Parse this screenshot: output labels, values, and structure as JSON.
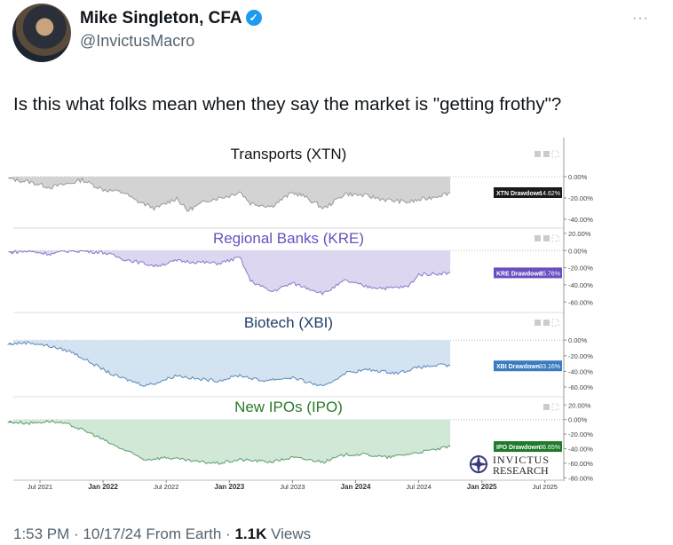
{
  "tweet": {
    "name": "Mike Singleton, CFA",
    "handle": "@InvictusMacro",
    "text": "Is this what folks mean when they say the market is \"getting frothy\"?",
    "time": "1:53 PM · 10/17/24 From Earth · ",
    "views_count": "1.1K",
    "views_label": " Views",
    "more": "···"
  },
  "chart_data": [
    {
      "type": "area",
      "title": "Transports (XTN)",
      "title_color": "#111111",
      "color": "#9a9a9a",
      "fill": "#d3d3d3",
      "label": "XTN Drawdown",
      "value": "-14.62%",
      "label_bg": "#1a1a1a",
      "ticks": [
        "0.00%",
        "-20.00%",
        "-40.00%"
      ],
      "tick_values": [
        0,
        -20,
        -40
      ],
      "ylim": [
        -45,
        10
      ],
      "x": [
        "2021-04",
        "2021-06",
        "2021-08",
        "2021-10",
        "2021-11",
        "2022-01",
        "2022-03",
        "2022-04",
        "2022-06",
        "2022-08",
        "2022-09",
        "2022-11",
        "2023-01",
        "2023-02",
        "2023-03",
        "2023-05",
        "2023-07",
        "2023-08",
        "2023-10",
        "2023-12",
        "2024-02",
        "2024-04",
        "2024-06",
        "2024-08",
        "2024-10"
      ],
      "y": [
        -2,
        -5,
        -10,
        -6,
        -3,
        -12,
        -15,
        -22,
        -30,
        -20,
        -32,
        -22,
        -18,
        -14,
        -25,
        -28,
        -15,
        -18,
        -30,
        -16,
        -18,
        -22,
        -24,
        -20,
        -15
      ]
    },
    {
      "type": "area",
      "title": "Regional Banks (KRE)",
      "title_color": "#6a4fc0",
      "color": "#8a78c8",
      "fill": "#ddd6f0",
      "label": "KRE Drawdown",
      "value": "-25.76%",
      "label_bg": "#6a4fc0",
      "ticks": [
        "20.00%",
        "0.00%",
        "-20.00%",
        "-40.00%",
        "-60.00%"
      ],
      "tick_values": [
        20,
        0,
        -20,
        -40,
        -60
      ],
      "ylim": [
        -68,
        22
      ],
      "x": [
        "2021-04",
        "2021-06",
        "2021-08",
        "2021-10",
        "2022-01",
        "2022-03",
        "2022-06",
        "2022-08",
        "2022-12",
        "2023-02",
        "2023-03",
        "2023-05",
        "2023-07",
        "2023-10",
        "2023-12",
        "2024-02",
        "2024-04",
        "2024-06",
        "2024-07",
        "2024-10"
      ],
      "y": [
        -2,
        -1,
        -4,
        0,
        -2,
        -10,
        -18,
        -12,
        -15,
        -8,
        -35,
        -48,
        -38,
        -50,
        -35,
        -42,
        -44,
        -42,
        -28,
        -26
      ]
    },
    {
      "type": "area",
      "title": "Biotech (XBI)",
      "title_color": "#1f3f6a",
      "color": "#5a88b8",
      "fill": "#d4e3f2",
      "label": "XBI Drawdown",
      "value": "-33.16%",
      "label_bg": "#3a7cc0",
      "ticks": [
        "0.00%",
        "-20.00%",
        "-40.00%",
        "-60.00%"
      ],
      "tick_values": [
        0,
        -20,
        -40,
        -60
      ],
      "ylim": [
        -68,
        15
      ],
      "x": [
        "2021-04",
        "2021-06",
        "2021-08",
        "2021-10",
        "2021-12",
        "2022-02",
        "2022-05",
        "2022-06",
        "2022-08",
        "2022-10",
        "2022-12",
        "2023-02",
        "2023-04",
        "2023-07",
        "2023-10",
        "2023-12",
        "2024-02",
        "2024-05",
        "2024-07",
        "2024-09",
        "2024-10"
      ],
      "y": [
        -5,
        -3,
        -8,
        -15,
        -30,
        -45,
        -58,
        -55,
        -45,
        -50,
        -52,
        -45,
        -52,
        -48,
        -60,
        -42,
        -38,
        -42,
        -35,
        -32,
        -33
      ]
    },
    {
      "type": "area",
      "title": "New IPOs (IPO)",
      "title_color": "#2a7a2a",
      "color": "#5a9a6a",
      "fill": "#d2e8d6",
      "label": "IPO Drawdown",
      "value": "-36.65%",
      "label_bg": "#1f7a2a",
      "ticks": [
        "20.00%",
        "0.00%",
        "-20.00%",
        "-40.00%",
        "-60.00%",
        "-80.00%"
      ],
      "tick_values": [
        20,
        0,
        -20,
        -40,
        -60,
        -80
      ],
      "ylim": [
        -82,
        24
      ],
      "x": [
        "2021-04",
        "2021-06",
        "2021-08",
        "2021-10",
        "2021-12",
        "2022-02",
        "2022-05",
        "2022-07",
        "2022-10",
        "2022-12",
        "2023-02",
        "2023-05",
        "2023-07",
        "2023-10",
        "2023-12",
        "2024-02",
        "2024-04",
        "2024-07",
        "2024-09",
        "2024-10"
      ],
      "y": [
        -3,
        -5,
        -2,
        -8,
        -20,
        -35,
        -55,
        -52,
        -58,
        -60,
        -55,
        -58,
        -52,
        -58,
        -48,
        -48,
        -52,
        -45,
        -40,
        -37
      ]
    }
  ],
  "x_ticks": [
    "Jul 2021",
    "Jan 2022",
    "Jul 2022",
    "Jan 2023",
    "Jul 2023",
    "Jan 2024",
    "Jul 2024",
    "Jan 2025",
    "Jul 2025"
  ],
  "x_tick_dates": [
    "2021-07",
    "2022-01",
    "2022-07",
    "2023-01",
    "2023-07",
    "2024-01",
    "2024-07",
    "2025-01",
    "2025-07"
  ],
  "watermark": "INVICTUS RESEARCH"
}
